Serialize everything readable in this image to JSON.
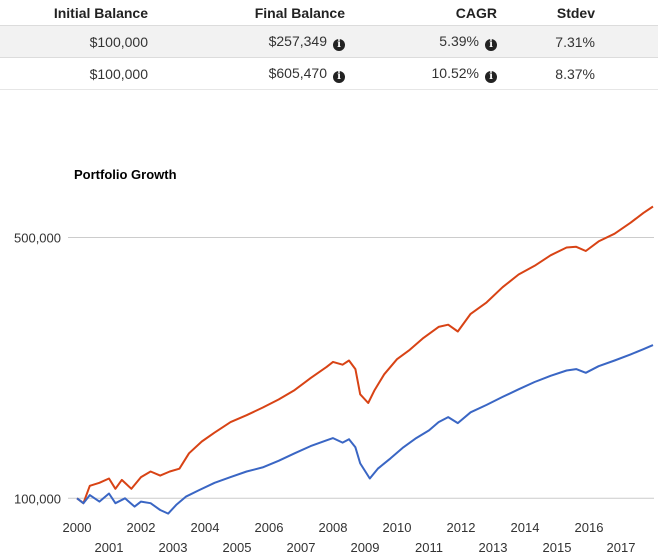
{
  "table": {
    "headers": [
      "Initial Balance",
      "Final Balance",
      "CAGR",
      "Stdev"
    ],
    "rows": [
      {
        "initial": "$100,000",
        "final": "$257,349",
        "cagr": "5.39%",
        "stdev": "7.31%"
      },
      {
        "initial": "$100,000",
        "final": "$605,470",
        "cagr": "10.52%",
        "stdev": "8.37%"
      }
    ],
    "info_icon_glyph": "i"
  },
  "chart_data": {
    "type": "line",
    "title": "Portfolio Growth",
    "ylabel": "",
    "xlabel": "",
    "y_scale": "log",
    "ylim": [
      88000,
      650000
    ],
    "xlim": [
      2000,
      2018
    ],
    "y_ticks": [
      {
        "value": 100000,
        "label": "100,000"
      },
      {
        "value": 500000,
        "label": "500,000"
      }
    ],
    "x_ticks": [
      "2000",
      "2001",
      "2002",
      "2003",
      "2004",
      "2005",
      "2006",
      "2007",
      "2008",
      "2009",
      "2010",
      "2011",
      "2012",
      "2013",
      "2014",
      "2015",
      "2016",
      "2017"
    ],
    "grid": true,
    "series": [
      {
        "color": "#d84315",
        "points": [
          [
            2000.0,
            100000
          ],
          [
            2000.2,
            97000
          ],
          [
            2000.4,
            108000
          ],
          [
            2000.7,
            110000
          ],
          [
            2001.0,
            113000
          ],
          [
            2001.2,
            106000
          ],
          [
            2001.4,
            112000
          ],
          [
            2001.7,
            106000
          ],
          [
            2002.0,
            114000
          ],
          [
            2002.3,
            118000
          ],
          [
            2002.6,
            115000
          ],
          [
            2002.9,
            118000
          ],
          [
            2003.2,
            120000
          ],
          [
            2003.5,
            132000
          ],
          [
            2003.9,
            142000
          ],
          [
            2004.3,
            150000
          ],
          [
            2004.8,
            160000
          ],
          [
            2005.3,
            167000
          ],
          [
            2005.8,
            175000
          ],
          [
            2006.3,
            184000
          ],
          [
            2006.8,
            195000
          ],
          [
            2007.3,
            210000
          ],
          [
            2007.8,
            225000
          ],
          [
            2008.0,
            232000
          ],
          [
            2008.3,
            228000
          ],
          [
            2008.5,
            234000
          ],
          [
            2008.7,
            222000
          ],
          [
            2008.85,
            190000
          ],
          [
            2009.1,
            180000
          ],
          [
            2009.3,
            195000
          ],
          [
            2009.6,
            215000
          ],
          [
            2010.0,
            236000
          ],
          [
            2010.4,
            250000
          ],
          [
            2010.8,
            268000
          ],
          [
            2011.3,
            288000
          ],
          [
            2011.6,
            292000
          ],
          [
            2011.9,
            280000
          ],
          [
            2012.3,
            312000
          ],
          [
            2012.8,
            335000
          ],
          [
            2013.3,
            368000
          ],
          [
            2013.8,
            398000
          ],
          [
            2014.3,
            420000
          ],
          [
            2014.8,
            448000
          ],
          [
            2015.3,
            470000
          ],
          [
            2015.6,
            472000
          ],
          [
            2015.9,
            460000
          ],
          [
            2016.3,
            488000
          ],
          [
            2016.8,
            512000
          ],
          [
            2017.3,
            548000
          ],
          [
            2017.7,
            582000
          ],
          [
            2018.0,
            605470
          ]
        ]
      },
      {
        "color": "#3a66c4",
        "points": [
          [
            2000.0,
            100000
          ],
          [
            2000.2,
            97000
          ],
          [
            2000.4,
            102000
          ],
          [
            2000.7,
            98000
          ],
          [
            2001.0,
            103000
          ],
          [
            2001.2,
            97000
          ],
          [
            2001.5,
            100000
          ],
          [
            2001.8,
            95000
          ],
          [
            2002.0,
            98000
          ],
          [
            2002.3,
            97000
          ],
          [
            2002.6,
            93000
          ],
          [
            2002.85,
            91000
          ],
          [
            2003.1,
            96000
          ],
          [
            2003.4,
            101000
          ],
          [
            2003.8,
            105000
          ],
          [
            2004.3,
            110000
          ],
          [
            2004.8,
            114000
          ],
          [
            2005.3,
            118000
          ],
          [
            2005.8,
            121000
          ],
          [
            2006.3,
            126000
          ],
          [
            2006.8,
            132000
          ],
          [
            2007.3,
            138000
          ],
          [
            2007.8,
            143000
          ],
          [
            2008.0,
            145000
          ],
          [
            2008.3,
            141000
          ],
          [
            2008.5,
            144000
          ],
          [
            2008.7,
            137000
          ],
          [
            2008.85,
            124000
          ],
          [
            2009.15,
            113000
          ],
          [
            2009.4,
            120000
          ],
          [
            2009.8,
            128000
          ],
          [
            2010.2,
            137000
          ],
          [
            2010.6,
            145000
          ],
          [
            2011.0,
            152000
          ],
          [
            2011.3,
            160000
          ],
          [
            2011.6,
            165000
          ],
          [
            2011.9,
            159000
          ],
          [
            2012.3,
            170000
          ],
          [
            2012.8,
            178000
          ],
          [
            2013.3,
            187000
          ],
          [
            2013.8,
            196000
          ],
          [
            2014.3,
            205000
          ],
          [
            2014.8,
            213000
          ],
          [
            2015.3,
            220000
          ],
          [
            2015.6,
            222000
          ],
          [
            2015.9,
            217000
          ],
          [
            2016.3,
            226000
          ],
          [
            2016.8,
            234000
          ],
          [
            2017.3,
            243000
          ],
          [
            2017.7,
            251000
          ],
          [
            2018.0,
            257349
          ]
        ]
      }
    ]
  }
}
